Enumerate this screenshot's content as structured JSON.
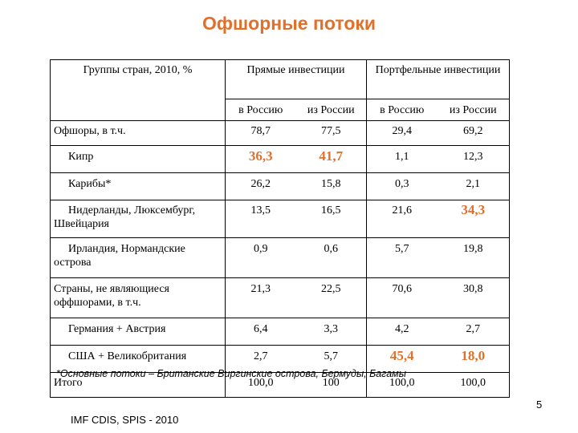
{
  "title": "Офшорные потоки",
  "table": {
    "corner_header": "Группы стран, 2010, %",
    "group_direct": "Прямые инвестиции",
    "group_portfolio": "Портфельные инвестиции",
    "sub": [
      "в Россию",
      "из России",
      "в Россию",
      "из России"
    ],
    "rows": [
      {
        "name": "Офшоры, в т.ч.",
        "values": [
          "78,7",
          "77,5",
          "29,4",
          "69,2"
        ]
      },
      {
        "name": "Кипр",
        "values": [
          "36,3",
          "41,7",
          "1,1",
          "12,3"
        ]
      },
      {
        "name": "Карибы*",
        "values": [
          "26,2",
          "15,8",
          "0,3",
          "2,1"
        ]
      },
      {
        "name": "Нидерланды, Люксембург, Швейцария",
        "values": [
          "13,5",
          "16,5",
          "21,6",
          "34,3"
        ]
      },
      {
        "name": "Ирландия, Нормандские острова",
        "values": [
          "0,9",
          "0,6",
          "5,7",
          "19,8"
        ]
      },
      {
        "name": "Страны, не являющиеся оффшорами, в т.ч.",
        "values": [
          "21,3",
          "22,5",
          "70,6",
          "30,8"
        ]
      },
      {
        "name": "Германия + Австрия",
        "values": [
          "6,4",
          "3,3",
          "4,2",
          "2,7"
        ]
      },
      {
        "name": "США + Великобритания",
        "values": [
          "2,7",
          "5,7",
          "45,4",
          "18,0"
        ]
      },
      {
        "name": "Итого",
        "values": [
          "100,0",
          "100",
          "100,0",
          "100,0"
        ]
      }
    ]
  },
  "highlight_color": "#E0702A",
  "footnote": "*Основные потоки – Британские Виргинские острова, Бермуды, Багамы",
  "page_number": "5",
  "source": "IMF CDIS, SPIS - 2010"
}
